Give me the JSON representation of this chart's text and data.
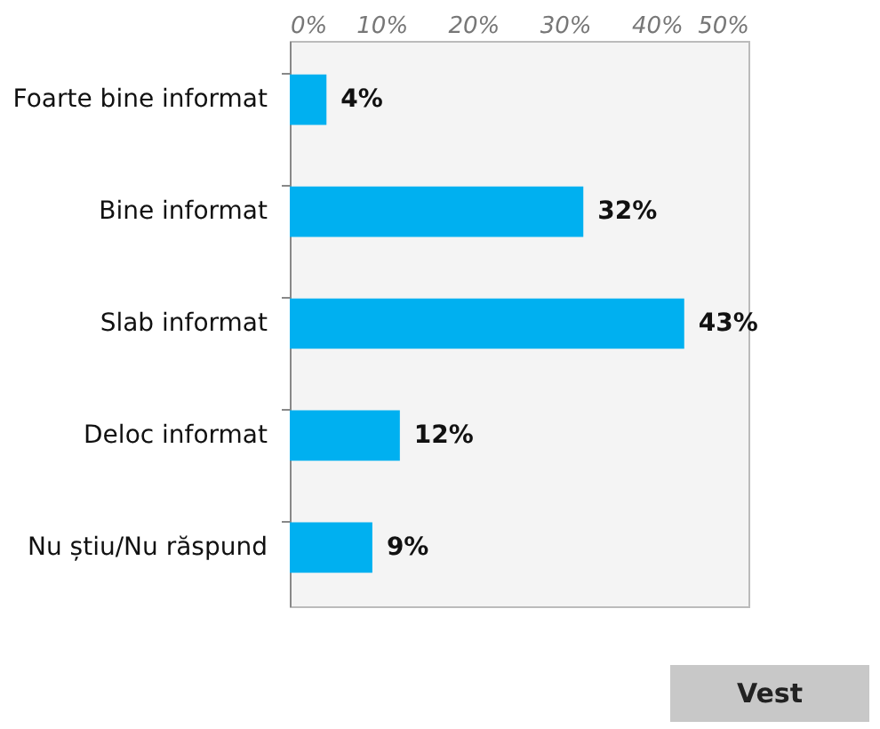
{
  "chart_data": {
    "type": "bar",
    "orientation": "horizontal",
    "categories": [
      "Foarte bine informat",
      "Bine informat",
      "Slab informat",
      "Deloc informat",
      "Nu știu/Nu răspund"
    ],
    "values": [
      4,
      32,
      43,
      12,
      9
    ],
    "value_labels": [
      "4%",
      "32%",
      "43%",
      "12%",
      "9%"
    ],
    "color": "#00b0f0",
    "xlim": [
      0,
      50
    ],
    "xticks": [
      {
        "value": 0,
        "label": "0%"
      },
      {
        "value": 10,
        "label": "10%"
      },
      {
        "value": 20,
        "label": "20%"
      },
      {
        "value": 30,
        "label": "30%"
      },
      {
        "value": 40,
        "label": "40%"
      },
      {
        "value": 50,
        "label": "50%"
      }
    ],
    "annotations": [
      "Vest"
    ]
  }
}
